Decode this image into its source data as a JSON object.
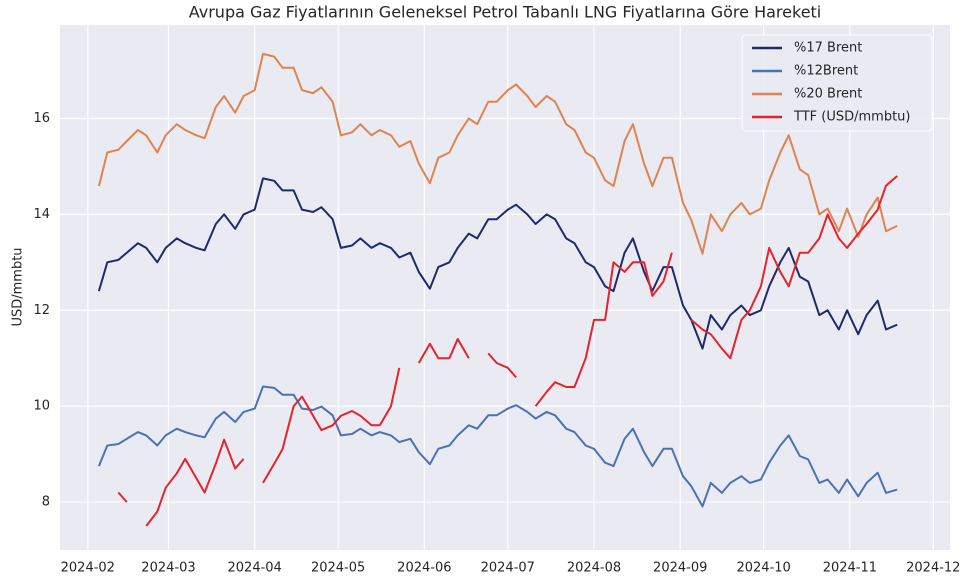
{
  "chart_data": {
    "type": "line",
    "title": "Avrupa Gaz Fiyatlarının Geleneksel Petrol Tabanlı LNG Fiyatlarına Göre Hareketi",
    "y_label": "USD/mmbtu",
    "x": [
      "2024-02-05",
      "2024-02-08",
      "2024-02-12",
      "2024-02-15",
      "2024-02-19",
      "2024-02-22",
      "2024-02-26",
      "2024-02-29",
      "2024-03-04",
      "2024-03-07",
      "2024-03-11",
      "2024-03-14",
      "2024-03-18",
      "2024-03-21",
      "2024-03-25",
      "2024-03-28",
      "2024-04-01",
      "2024-04-04",
      "2024-04-08",
      "2024-04-11",
      "2024-04-15",
      "2024-04-18",
      "2024-04-22",
      "2024-04-25",
      "2024-04-29",
      "2024-05-02",
      "2024-05-06",
      "2024-05-09",
      "2024-05-13",
      "2024-05-16",
      "2024-05-20",
      "2024-05-23",
      "2024-05-27",
      "2024-05-30",
      "2024-06-03",
      "2024-06-06",
      "2024-06-10",
      "2024-06-13",
      "2024-06-17",
      "2024-06-20",
      "2024-06-24",
      "2024-06-27",
      "2024-07-01",
      "2024-07-04",
      "2024-07-08",
      "2024-07-11",
      "2024-07-15",
      "2024-07-18",
      "2024-07-22",
      "2024-07-25",
      "2024-07-29",
      "2024-08-01",
      "2024-08-05",
      "2024-08-08",
      "2024-08-12",
      "2024-08-15",
      "2024-08-19",
      "2024-08-22",
      "2024-08-26",
      "2024-08-29",
      "2024-09-02",
      "2024-09-05",
      "2024-09-09",
      "2024-09-12",
      "2024-09-16",
      "2024-09-19",
      "2024-09-23",
      "2024-09-26",
      "2024-09-30",
      "2024-10-03",
      "2024-10-07",
      "2024-10-10",
      "2024-10-14",
      "2024-10-17",
      "2024-10-21",
      "2024-10-24",
      "2024-10-28",
      "2024-10-31",
      "2024-11-04",
      "2024-11-07",
      "2024-11-11",
      "2024-11-14",
      "2024-11-18"
    ],
    "series": [
      {
        "name": "%17 Brent",
        "color": "#1f2a6b",
        "values": [
          12.4,
          13.0,
          13.05,
          13.2,
          13.4,
          13.3,
          13.0,
          13.3,
          13.5,
          13.4,
          13.3,
          13.25,
          13.8,
          14.0,
          13.7,
          14.0,
          14.1,
          14.75,
          14.7,
          14.5,
          14.5,
          14.1,
          14.05,
          14.15,
          13.9,
          13.3,
          13.35,
          13.5,
          13.3,
          13.4,
          13.3,
          13.1,
          13.2,
          12.8,
          12.45,
          12.9,
          13.0,
          13.3,
          13.6,
          13.5,
          13.9,
          13.9,
          14.1,
          14.2,
          14.0,
          13.8,
          14.0,
          13.9,
          13.5,
          13.4,
          13.0,
          12.9,
          12.5,
          12.4,
          13.2,
          13.5,
          12.8,
          12.4,
          12.9,
          12.9,
          12.1,
          11.8,
          11.2,
          11.9,
          11.6,
          11.9,
          12.1,
          11.9,
          12.0,
          12.5,
          13.0,
          13.3,
          12.7,
          12.6,
          11.9,
          12.0,
          11.6,
          12.0,
          11.5,
          11.9,
          12.2,
          11.6,
          11.7
        ]
      },
      {
        "name": "%12Brent",
        "color": "#4c72b0",
        "values": [
          8.75,
          9.18,
          9.21,
          9.32,
          9.46,
          9.39,
          9.18,
          9.39,
          9.53,
          9.46,
          9.39,
          9.35,
          9.74,
          9.88,
          9.67,
          9.88,
          9.95,
          10.41,
          10.38,
          10.24,
          10.24,
          9.95,
          9.92,
          9.99,
          9.81,
          9.39,
          9.42,
          9.53,
          9.39,
          9.46,
          9.39,
          9.25,
          9.32,
          9.04,
          8.79,
          9.11,
          9.18,
          9.39,
          9.6,
          9.53,
          9.81,
          9.81,
          9.95,
          10.02,
          9.88,
          9.74,
          9.88,
          9.81,
          9.53,
          9.46,
          9.18,
          9.11,
          8.82,
          8.75,
          9.32,
          9.53,
          9.04,
          8.75,
          9.11,
          9.11,
          8.54,
          8.33,
          7.91,
          8.4,
          8.19,
          8.4,
          8.54,
          8.4,
          8.47,
          8.82,
          9.18,
          9.39,
          8.96,
          8.89,
          8.4,
          8.47,
          8.19,
          8.47,
          8.12,
          8.4,
          8.61,
          8.19,
          8.26
        ]
      },
      {
        "name": "%20 Brent",
        "color": "#dd8452",
        "values": [
          14.59,
          15.29,
          15.35,
          15.53,
          15.76,
          15.65,
          15.29,
          15.65,
          15.88,
          15.76,
          15.65,
          15.59,
          16.24,
          16.47,
          16.12,
          16.47,
          16.59,
          17.35,
          17.29,
          17.06,
          17.06,
          16.59,
          16.53,
          16.65,
          16.35,
          15.65,
          15.71,
          15.88,
          15.65,
          15.76,
          15.65,
          15.41,
          15.53,
          15.06,
          14.65,
          15.18,
          15.29,
          15.65,
          16.0,
          15.88,
          16.35,
          16.35,
          16.59,
          16.71,
          16.47,
          16.24,
          16.47,
          16.35,
          15.88,
          15.76,
          15.29,
          15.18,
          14.71,
          14.59,
          15.53,
          15.88,
          15.06,
          14.59,
          15.18,
          15.18,
          14.24,
          13.88,
          13.18,
          14.0,
          13.65,
          14.0,
          14.24,
          14.0,
          14.12,
          14.71,
          15.29,
          15.65,
          14.94,
          14.82,
          14.0,
          14.12,
          13.65,
          14.12,
          13.53,
          14.0,
          14.35,
          13.65,
          13.76
        ]
      },
      {
        "name": "TTF (USD/mmbtu)",
        "color": "#e3242b",
        "values": [
          null,
          null,
          8.2,
          8.0,
          null,
          7.5,
          7.8,
          8.3,
          8.6,
          8.9,
          8.5,
          8.2,
          8.8,
          9.3,
          8.7,
          8.9,
          null,
          8.4,
          8.8,
          9.1,
          10.0,
          10.2,
          9.8,
          9.5,
          9.6,
          9.8,
          9.9,
          9.8,
          9.6,
          9.6,
          10.0,
          10.8,
          null,
          10.9,
          11.3,
          11.0,
          11.0,
          11.4,
          11.0,
          null,
          11.1,
          10.9,
          10.8,
          10.6,
          null,
          10.0,
          10.3,
          10.5,
          10.4,
          10.4,
          11.0,
          11.8,
          11.8,
          13.0,
          12.8,
          13.0,
          13.0,
          12.3,
          12.6,
          13.2,
          null,
          11.8,
          11.6,
          11.5,
          11.2,
          11.0,
          11.8,
          12.0,
          12.5,
          13.3,
          12.8,
          12.5,
          13.2,
          13.2,
          13.5,
          14.0,
          13.5,
          13.3,
          13.6,
          13.8,
          14.1,
          14.6,
          14.8
        ]
      }
    ],
    "xlim": [
      "2024-01-22",
      "2024-12-07"
    ],
    "xticks": [
      {
        "value": "2024-02-01",
        "label": "2024-02"
      },
      {
        "value": "2024-03-01",
        "label": "2024-03"
      },
      {
        "value": "2024-04-01",
        "label": "2024-04"
      },
      {
        "value": "2024-05-01",
        "label": "2024-05"
      },
      {
        "value": "2024-06-01",
        "label": "2024-06"
      },
      {
        "value": "2024-07-01",
        "label": "2024-07"
      },
      {
        "value": "2024-08-01",
        "label": "2024-08"
      },
      {
        "value": "2024-09-01",
        "label": "2024-09"
      },
      {
        "value": "2024-10-01",
        "label": "2024-10"
      },
      {
        "value": "2024-11-01",
        "label": "2024-11"
      },
      {
        "value": "2024-12-01",
        "label": "2024-12"
      }
    ],
    "ylim": [
      7.0,
      17.95
    ],
    "yticks": [
      8,
      10,
      12,
      14,
      16
    ],
    "grid": true,
    "legend": "upper right"
  }
}
